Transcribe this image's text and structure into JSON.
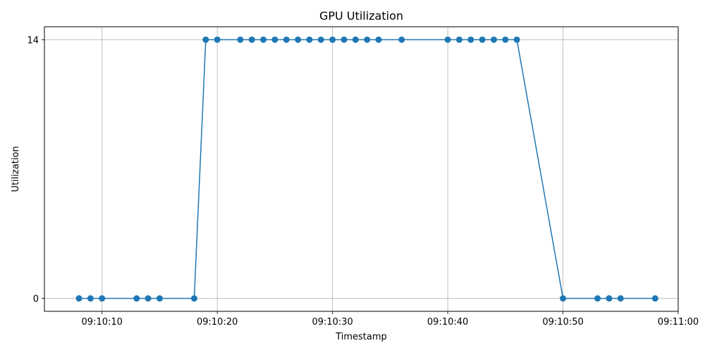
{
  "chart_data": {
    "type": "line",
    "title": "GPU Utilization",
    "xlabel": "Timestamp",
    "ylabel": "Utilization",
    "date": "",
    "x_ticks": [
      "09:10:10",
      "09:10:20",
      "09:10:30",
      "09:10:40",
      "09:10:50",
      "09:11:00"
    ],
    "y_ticks": [
      0,
      14
    ],
    "xlim": [
      "09:10:05",
      "09:11:00"
    ],
    "ylim": [
      -0.7,
      14.7
    ],
    "grid": true,
    "series": [
      {
        "color": "#1f77b4",
        "marker": "circle",
        "x": [
          "09:10:08",
          "09:10:09",
          "09:10:10",
          "09:10:13",
          "09:10:14",
          "09:10:15",
          "09:10:18",
          "09:10:19",
          "09:10:20",
          "09:10:22",
          "09:10:23",
          "09:10:24",
          "09:10:25",
          "09:10:26",
          "09:10:27",
          "09:10:28",
          "09:10:29",
          "09:10:30",
          "09:10:31",
          "09:10:32",
          "09:10:33",
          "09:10:34",
          "09:10:36",
          "09:10:40",
          "09:10:41",
          "09:10:42",
          "09:10:43",
          "09:10:44",
          "09:10:45",
          "09:10:46",
          "09:10:50",
          "09:10:53",
          "09:10:54",
          "09:10:55",
          "09:10:58"
        ],
        "y": [
          0,
          0,
          0,
          0,
          0,
          0,
          0,
          14,
          14,
          14,
          14,
          14,
          14,
          14,
          14,
          14,
          14,
          14,
          14,
          14,
          14,
          14,
          14,
          14,
          14,
          14,
          14,
          14,
          14,
          14,
          0,
          0,
          0,
          0,
          0
        ]
      }
    ]
  }
}
